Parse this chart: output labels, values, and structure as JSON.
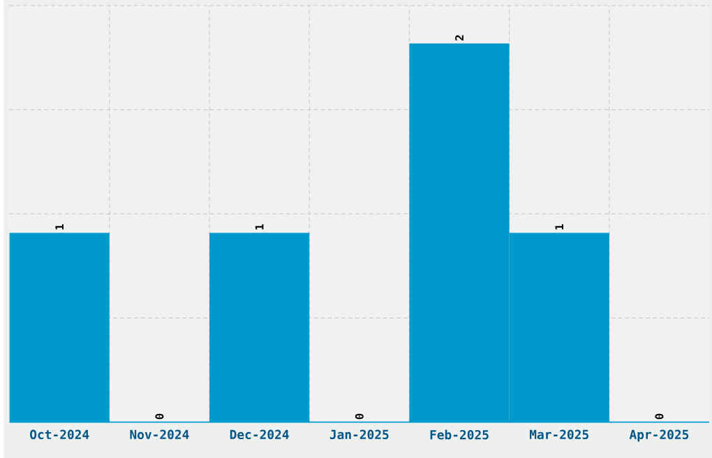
{
  "chart_data": {
    "type": "bar",
    "categories": [
      "Oct-2024",
      "Nov-2024",
      "Dec-2024",
      "Jan-2025",
      "Feb-2025",
      "Mar-2025",
      "Apr-2025"
    ],
    "values": [
      1,
      0,
      1,
      0,
      2,
      1,
      0
    ],
    "color": "#0099cc",
    "ylim": [
      0,
      2.2
    ],
    "yticks": [
      {
        "value": 0.55,
        "label": null
      },
      {
        "value": 1.1,
        "label": null
      },
      {
        "value": 1.65,
        "label": null
      },
      {
        "value": 2.2,
        "label": null
      }
    ],
    "grid": true,
    "data_labels": true
  }
}
